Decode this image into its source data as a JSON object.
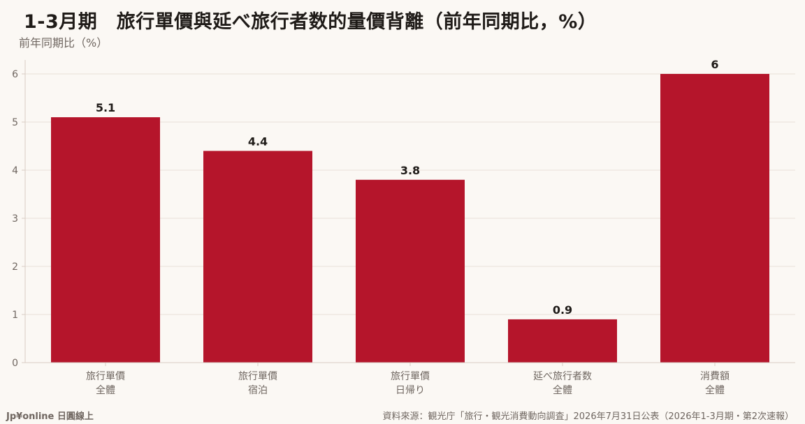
{
  "brand": "Jp¥online 日圓線上",
  "source": "資料來源：観光庁「旅行・観光消費動向調査」2026年7月31日公表（2026年1-3月期・第2次速報）",
  "colors": {
    "bar": "#b5152b",
    "grid": "#eadfd8",
    "axis": "#d8cdc4",
    "tick_text": "#6f6660",
    "value_text": "#1f1b18"
  },
  "chart_data": {
    "type": "bar",
    "title": "1-3月期　旅行單價與延べ旅行者数的量價背離（前年同期比，%）",
    "ylabel": "前年同期比（%）",
    "xlabel": "",
    "categories": [
      [
        "旅行單價",
        "全體"
      ],
      [
        "旅行單價",
        "宿泊"
      ],
      [
        "旅行單價",
        "日帰り"
      ],
      [
        "延べ旅行者数",
        "全體"
      ],
      [
        "消費額",
        "全體"
      ]
    ],
    "values": [
      5.1,
      4.4,
      3.8,
      0.9,
      6
    ],
    "value_labels": [
      "5.1",
      "4.4",
      "3.8",
      "0.9",
      "6"
    ],
    "ylim": [
      0,
      6.3
    ],
    "yticks": [
      0,
      1,
      2,
      3,
      4,
      5,
      6
    ],
    "grid": true,
    "legend": "none"
  }
}
